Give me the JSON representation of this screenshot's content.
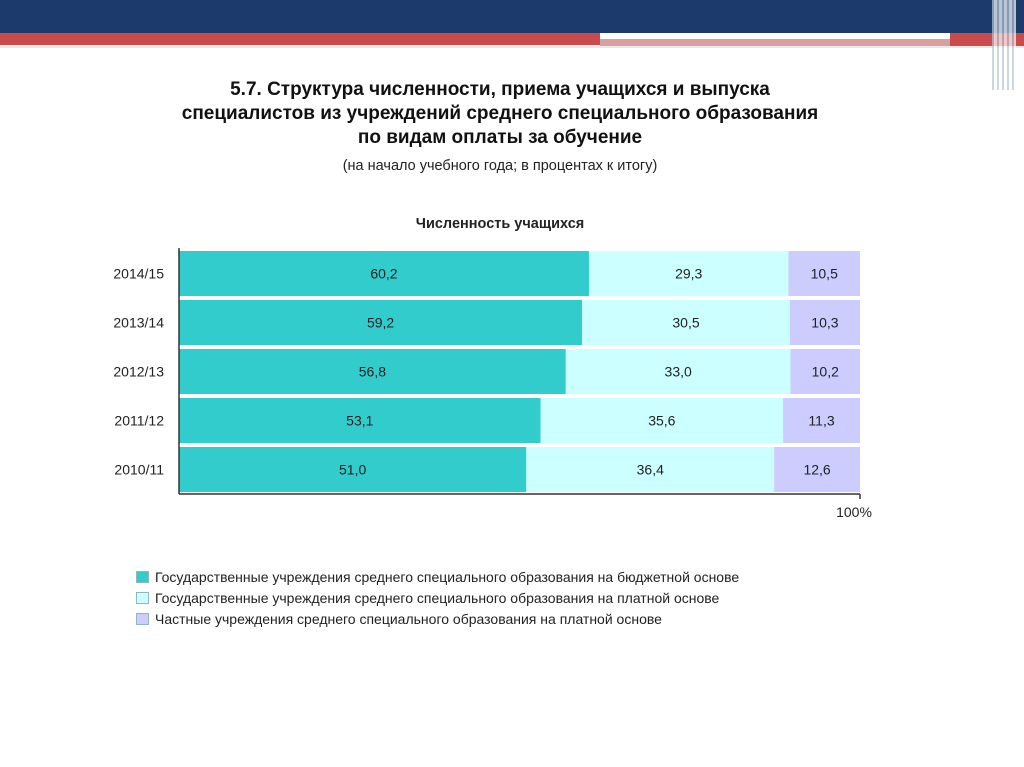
{
  "header": {
    "title": "5.7. Структура численности, приема учащихся и выпуска специалистов из учреждений среднего специального образования по видам оплаты за обучение",
    "subtitle": "(на начало учебного года; в процентах к итогу)"
  },
  "colors": {
    "budget": "#33cccc",
    "paid_state": "#ccffff",
    "private": "#ccccff",
    "header_dark": "#1d3a6d",
    "header_red": "#c94b4b"
  },
  "chart_data": {
    "type": "bar",
    "orientation": "horizontal",
    "stacked": true,
    "title": "Численность учащихся",
    "categories": [
      "2014/15",
      "2013/14",
      "2012/13",
      "2011/12",
      "2010/11"
    ],
    "series": [
      {
        "name": "Государственные учреждения среднего специального образования на бюджетной основе",
        "values": [
          60.2,
          59.2,
          56.8,
          53.1,
          51.0
        ],
        "labels": [
          "60,2",
          "59,2",
          "56,8",
          "53,1",
          "51,0"
        ]
      },
      {
        "name": "Государственные учреждения среднего специального образования на платной основе",
        "values": [
          29.3,
          30.5,
          33.0,
          35.6,
          36.4
        ],
        "labels": [
          "29,3",
          "30,5",
          "33,0",
          "35,6",
          "36,4"
        ]
      },
      {
        "name": "Частные учреждения среднего специального образования на платной основе",
        "values": [
          10.5,
          10.3,
          10.2,
          11.3,
          12.6
        ],
        "labels": [
          "10,5",
          "10,3",
          "10,2",
          "11,3",
          "12,6"
        ]
      }
    ],
    "xlim": [
      0,
      100
    ],
    "x_tick_label": "100%",
    "legend_position": "bottom-left",
    "grid": false
  }
}
